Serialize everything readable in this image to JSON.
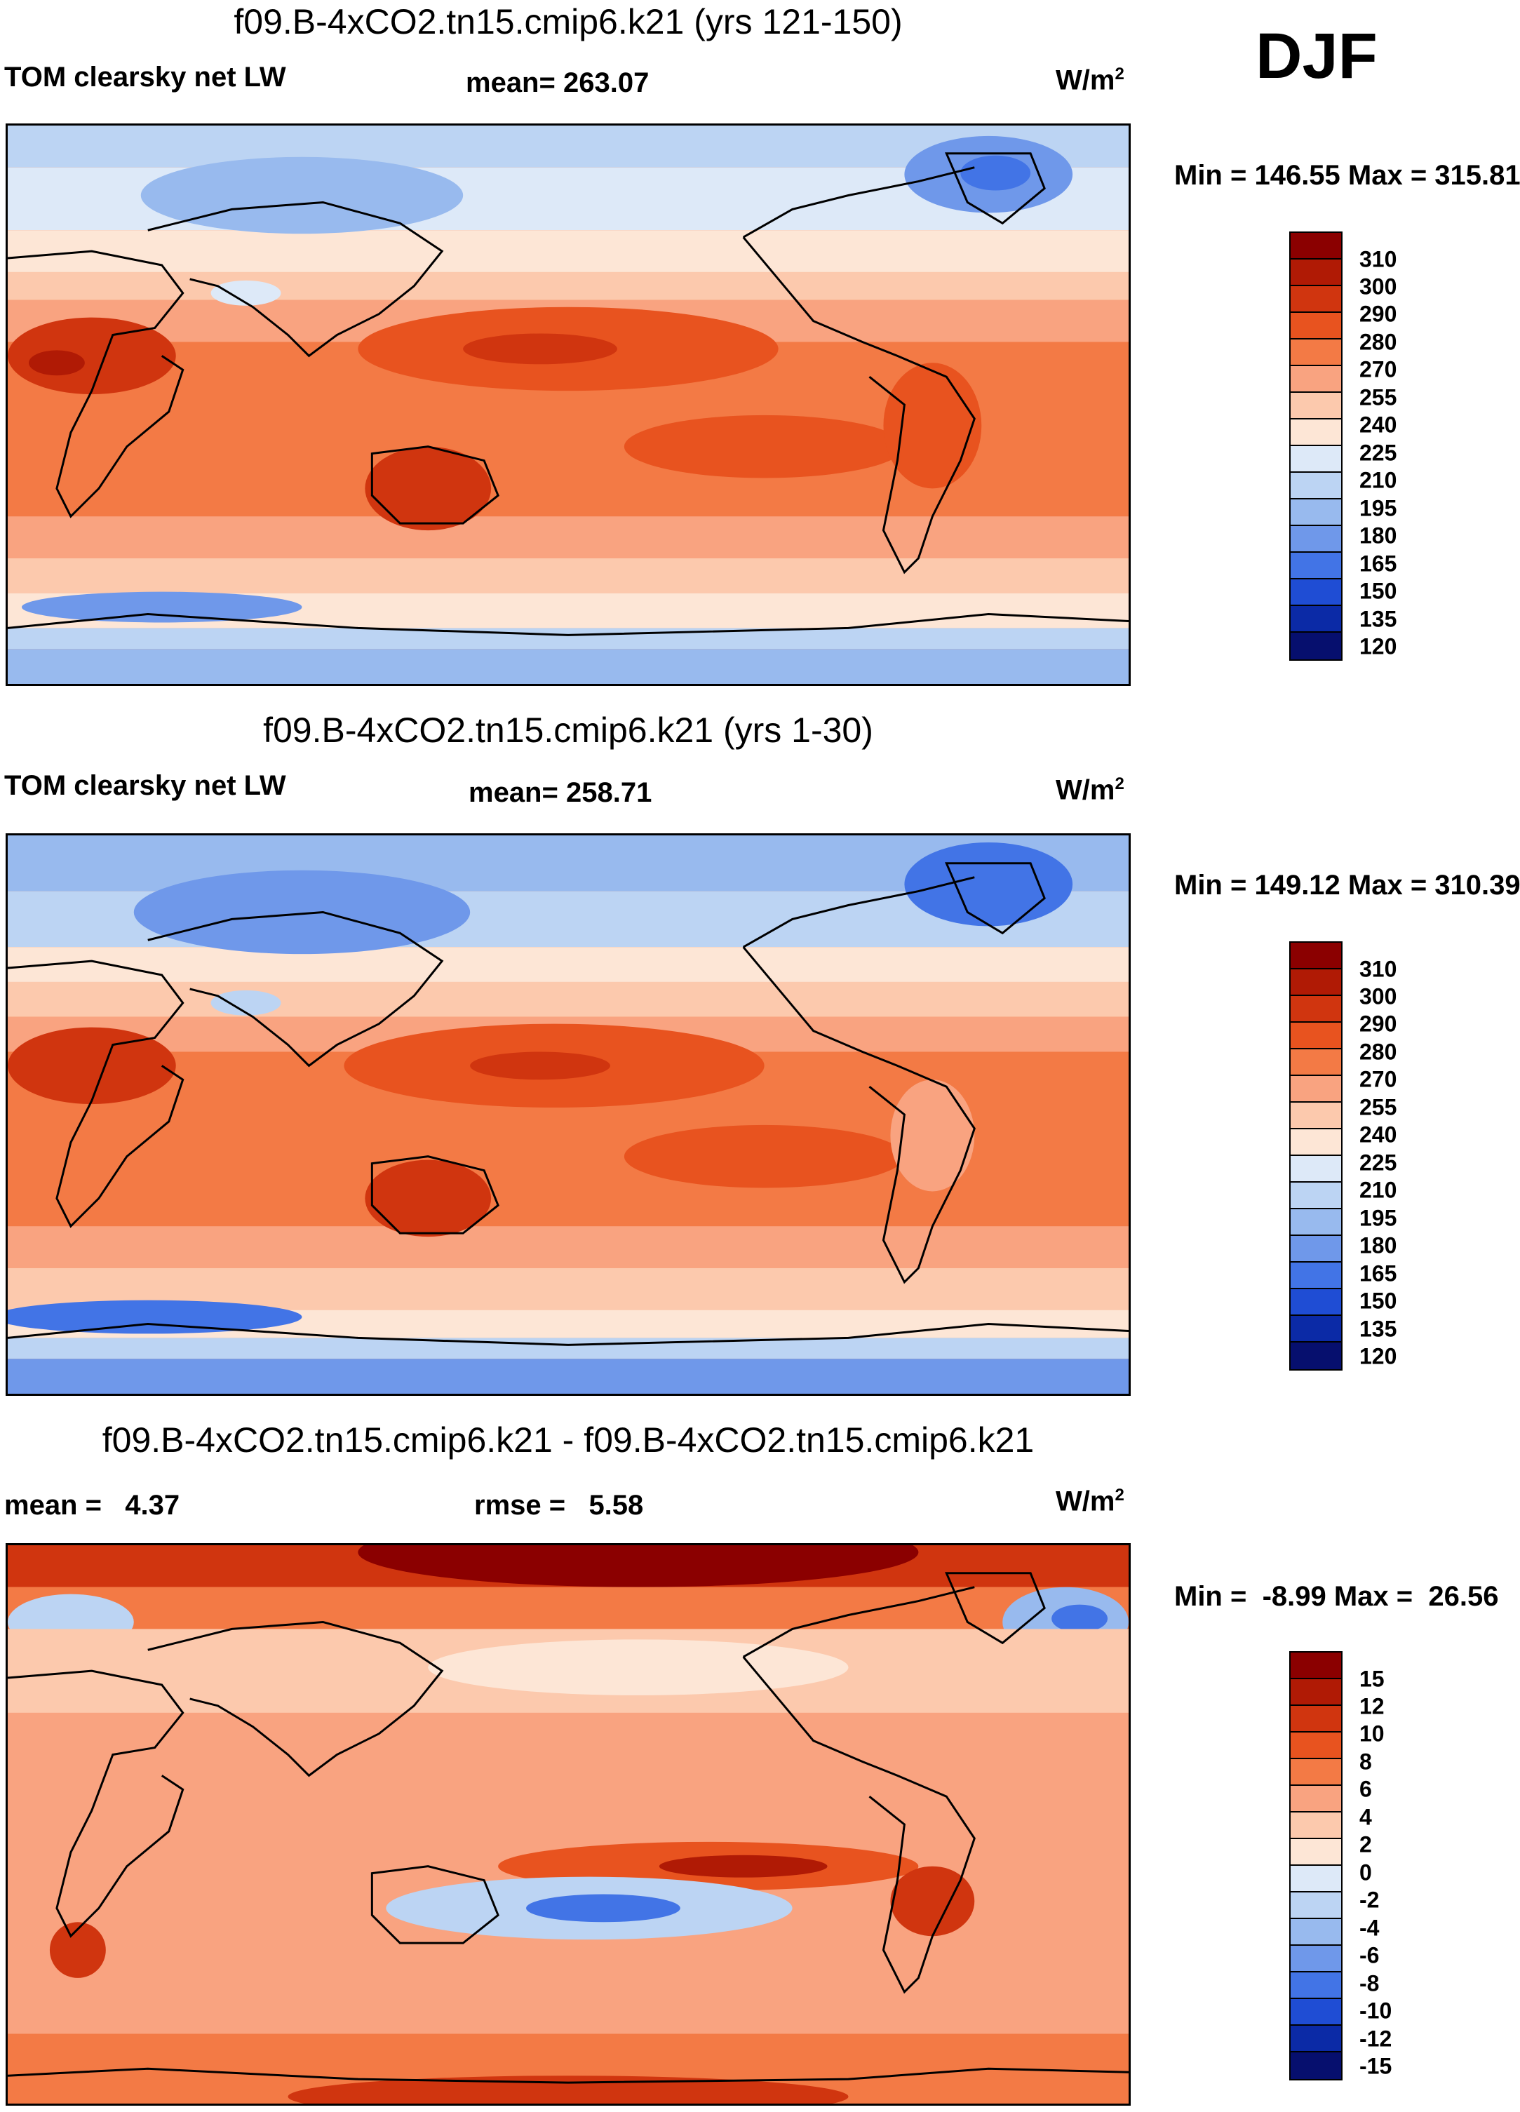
{
  "season": "DJF",
  "panels": [
    {
      "title": "f09.B-4xCO2.tn15.cmip6.k21 (yrs 121-150)",
      "variable": "TOM clearsky net LW",
      "stat1": "mean= 263.07",
      "stat2": "",
      "units": "W/m",
      "units_sup": "2",
      "minmax": "Min = 146.55 Max = 315.81"
    },
    {
      "title": "f09.B-4xCO2.tn15.cmip6.k21 (yrs 1-30)",
      "variable": "TOM clearsky net LW",
      "stat1": "mean= 258.71",
      "stat2": "",
      "units": "W/m",
      "units_sup": "2",
      "minmax": "Min = 149.12 Max = 310.39"
    },
    {
      "title": "f09.B-4xCO2.tn15.cmip6.k21 - f09.B-4xCO2.tn15.cmip6.k21",
      "variable": "",
      "stat1": "mean =   4.37",
      "stat2": "rmse =   5.58",
      "units": "W/m",
      "units_sup": "2",
      "minmax": "Min =  -8.99 Max =  26.56"
    }
  ],
  "chart_data": [
    {
      "type": "heatmap",
      "title": "f09.B-4xCO2.tn15.cmip6.k21 (yrs 121-150)",
      "colorbar_levels": [
        "310",
        "300",
        "290",
        "280",
        "270",
        "255",
        "240",
        "225",
        "210",
        "195",
        "180",
        "165",
        "150",
        "135",
        "120"
      ],
      "colorbar_colors": [
        "#8b0000",
        "#b01a05",
        "#d0350f",
        "#e8531f",
        "#f37a45",
        "#f9a380",
        "#fcc9ad",
        "#fde6d6",
        "#dde9f8",
        "#bcd4f3",
        "#98baee",
        "#6f98ea",
        "#4274e6",
        "#1f4dd4",
        "#0b2aa6",
        "#060f6e"
      ],
      "min": 146.55,
      "max": 315.81,
      "mean": 263.07
    },
    {
      "type": "heatmap",
      "title": "f09.B-4xCO2.tn15.cmip6.k21 (yrs 1-30)",
      "colorbar_levels": [
        "310",
        "300",
        "290",
        "280",
        "270",
        "255",
        "240",
        "225",
        "210",
        "195",
        "180",
        "165",
        "150",
        "135",
        "120"
      ],
      "colorbar_colors": [
        "#8b0000",
        "#b01a05",
        "#d0350f",
        "#e8531f",
        "#f37a45",
        "#f9a380",
        "#fcc9ad",
        "#fde6d6",
        "#dde9f8",
        "#bcd4f3",
        "#98baee",
        "#6f98ea",
        "#4274e6",
        "#1f4dd4",
        "#0b2aa6",
        "#060f6e"
      ],
      "min": 149.12,
      "max": 310.39,
      "mean": 258.71
    },
    {
      "type": "heatmap",
      "title": "f09.B-4xCO2.tn15.cmip6.k21 - f09.B-4xCO2.tn15.cmip6.k21",
      "colorbar_levels": [
        "15",
        "12",
        "10",
        "8",
        "6",
        "4",
        "2",
        "0",
        "-2",
        "-4",
        "-6",
        "-8",
        "-10",
        "-12",
        "-15"
      ],
      "colorbar_colors": [
        "#8b0000",
        "#b01a05",
        "#d0350f",
        "#e8531f",
        "#f37a45",
        "#f9a380",
        "#fcc9ad",
        "#fde6d6",
        "#dde9f8",
        "#bcd4f3",
        "#98baee",
        "#6f98ea",
        "#4274e6",
        "#1f4dd4",
        "#0b2aa6",
        "#060f6e"
      ],
      "min": -8.99,
      "max": 26.56,
      "mean": 4.37,
      "rmse": 5.58
    }
  ]
}
